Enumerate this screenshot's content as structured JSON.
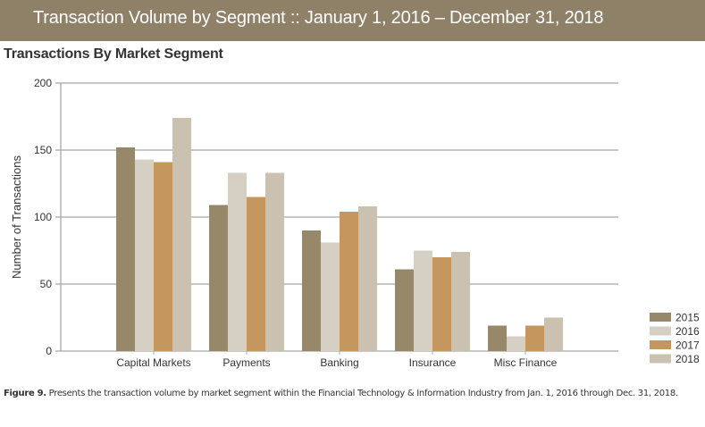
{
  "banner": {
    "title": "Transaction Volume by Segment :: January 1, 2016 – December 31, 2018"
  },
  "caption": {
    "label": "Figure 9.",
    "text": " Presents the transaction volume by market segment within the Financial Technology & Information Industry from Jan. 1, 2016 through Dec. 31, 2018."
  },
  "chart_data": {
    "type": "bar",
    "title": "Transactions By Market Segment",
    "xlabel": "",
    "ylabel": "Number of Transactions",
    "ylim": [
      0,
      200
    ],
    "yticks": [
      0,
      50,
      100,
      150,
      200
    ],
    "grid": true,
    "legend_position": "bottom-right",
    "categories": [
      "Capital Markets",
      "Payments",
      "Banking",
      "Insurance",
      "Misc Finance"
    ],
    "series": [
      {
        "name": "2015",
        "color": "#968869",
        "values": [
          152,
          109,
          90,
          61,
          19
        ]
      },
      {
        "name": "2016",
        "color": "#d6d0c4",
        "values": [
          143,
          133,
          81,
          75,
          11
        ]
      },
      {
        "name": "2017",
        "color": "#c4975f",
        "values": [
          141,
          115,
          104,
          70,
          19
        ]
      },
      {
        "name": "2018",
        "color": "#cbc1b1",
        "values": [
          174,
          133,
          108,
          74,
          25
        ]
      }
    ]
  }
}
